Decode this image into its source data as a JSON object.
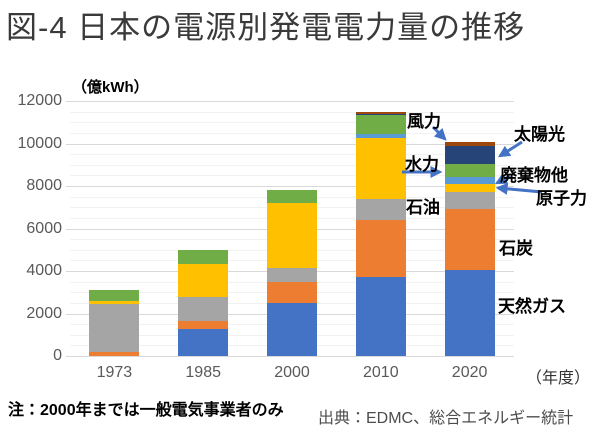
{
  "chart_data": {
    "type": "bar",
    "stacked": true,
    "title": "図-4 日本の電源別発電電力量の推移",
    "unit_label": "（億kWh）",
    "x_axis_suffix_label": "（年度）",
    "categories": [
      "1973",
      "1985",
      "2000",
      "2010",
      "2020"
    ],
    "ylim": [
      0,
      12000
    ],
    "y_ticks": [
      0,
      2000,
      4000,
      6000,
      8000,
      10000,
      12000
    ],
    "minor_grid_step": 500,
    "grid": true,
    "arrow_color": "#4472C4",
    "series": [
      {
        "id": "gas",
        "name": "天然ガス",
        "color": "#4472C4",
        "values": [
          0,
          1270,
          2480,
          3700,
          4050
        ]
      },
      {
        "id": "coal",
        "name": "石炭",
        "color": "#ED7D31",
        "values": [
          180,
          380,
          1020,
          2680,
          2850
        ]
      },
      {
        "id": "oil",
        "name": "石油",
        "color": "#A5A5A5",
        "values": [
          2260,
          1140,
          630,
          990,
          820
        ]
      },
      {
        "id": "nuclear",
        "name": "原子力",
        "color": "#FFC000",
        "values": [
          140,
          1540,
          3050,
          2880,
          380
        ]
      },
      {
        "id": "waste",
        "name": "廃棄物他",
        "color": "#5B9BD5",
        "values": [
          0,
          0,
          0,
          190,
          310
        ]
      },
      {
        "id": "hydro",
        "name": "水力",
        "color": "#70AD47",
        "values": [
          520,
          660,
          630,
          910,
          630
        ]
      },
      {
        "id": "solar",
        "name": "太陽光",
        "color": "#264478",
        "values": [
          0,
          0,
          0,
          40,
          850
        ]
      },
      {
        "id": "wind",
        "name": "風力",
        "color": "#9E480E",
        "values": [
          0,
          0,
          0,
          80,
          160
        ]
      }
    ],
    "annotations": [
      {
        "id": "wind",
        "text": "風力"
      },
      {
        "id": "solar",
        "text": "太陽光"
      },
      {
        "id": "hydro",
        "text": "水力"
      },
      {
        "id": "waste",
        "text": "廃棄物他"
      },
      {
        "id": "nuclear",
        "text": "原子力"
      },
      {
        "id": "oil",
        "text": "石油"
      },
      {
        "id": "coal",
        "text": "石炭"
      },
      {
        "id": "gas",
        "text": "天然ガス"
      }
    ],
    "note": "注：2000年までは一般電気事業者のみ",
    "source": "出典：EDMC、総合エネルギー統計"
  }
}
